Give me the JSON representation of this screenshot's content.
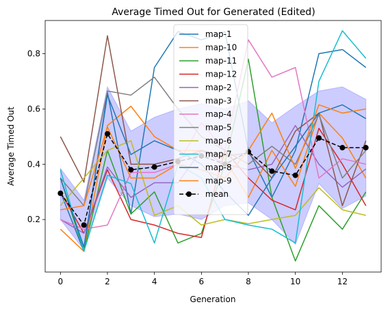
{
  "chart_data": {
    "type": "line",
    "title": "Average Timed Out for Generated (Edited)",
    "xlabel": "Generation",
    "ylabel": "Average Timed Out",
    "xlim": [
      -0.65,
      13.65
    ],
    "ylim": [
      0.01,
      0.92
    ],
    "xticks": [
      0,
      2,
      4,
      6,
      8,
      10,
      12
    ],
    "yticks": [
      0.2,
      0.4,
      0.6,
      0.8
    ],
    "grid": false,
    "legend_position": "top-center",
    "x": [
      0,
      1,
      2,
      3,
      4,
      5,
      6,
      7,
      8,
      9,
      10,
      11,
      12,
      13
    ],
    "band": {
      "color": "#0000ff",
      "upper": [
        0.385,
        0.27,
        0.68,
        0.52,
        0.57,
        0.6,
        0.62,
        0.6,
        0.63,
        0.55,
        0.61,
        0.665,
        0.68,
        0.635
      ],
      "lower": [
        0.2,
        0.09,
        0.35,
        0.25,
        0.21,
        0.22,
        0.2,
        0.25,
        0.26,
        0.2,
        0.11,
        0.33,
        0.24,
        0.285
      ]
    },
    "series": [
      {
        "name": "map-1",
        "color": "#1f77b4",
        "values": [
          0.3,
          0.085,
          0.66,
          0.22,
          0.75,
          0.88,
          0.85,
          0.88,
          0.45,
          0.28,
          0.45,
          0.8,
          0.815,
          0.75
        ]
      },
      {
        "name": "map-10",
        "color": "#ff7f0e",
        "values": [
          0.165,
          0.085,
          0.54,
          0.61,
          0.5,
          0.45,
          0.45,
          0.42,
          0.28,
          0.45,
          0.32,
          0.585,
          0.495,
          0.35
        ]
      },
      {
        "name": "map-11",
        "color": "#2ca02c",
        "values": [
          0.35,
          0.085,
          0.45,
          0.22,
          0.3,
          0.115,
          0.15,
          0.4,
          0.78,
          0.28,
          0.05,
          0.25,
          0.165,
          0.3
        ]
      },
      {
        "name": "map-12",
        "color": "#d62728",
        "values": [
          0.3,
          0.15,
          0.38,
          0.2,
          0.18,
          0.15,
          0.135,
          0.45,
          0.35,
          0.27,
          0.235,
          0.53,
          0.4,
          0.25
        ]
      },
      {
        "name": "map-2",
        "color": "#9467bd",
        "values": [
          0.2,
          0.15,
          0.39,
          0.28,
          0.333,
          0.333,
          0.45,
          0.4,
          0.38,
          0.4,
          0.54,
          0.4,
          0.317,
          0.383
        ]
      },
      {
        "name": "map-3",
        "color": "#8c564b",
        "values": [
          0.5,
          0.335,
          0.865,
          0.4,
          0.4,
          0.42,
          0.45,
          0.43,
          0.44,
          0.35,
          0.52,
          0.585,
          0.25,
          0.485
        ]
      },
      {
        "name": "map-4",
        "color": "#e377c2",
        "values": [
          0.2,
          0.165,
          0.18,
          0.37,
          0.37,
          0.4,
          0.55,
          0.45,
          0.85,
          0.715,
          0.75,
          0.35,
          0.42,
          0.4
        ]
      },
      {
        "name": "map-5",
        "color": "#7f7f7f",
        "values": [
          0.35,
          0.25,
          0.665,
          0.65,
          0.715,
          0.6,
          0.5,
          0.45,
          0.4,
          0.465,
          0.4,
          0.58,
          0.35,
          0.45
        ]
      },
      {
        "name": "map-6",
        "color": "#bcbd22",
        "values": [
          0.25,
          0.35,
          0.45,
          0.485,
          0.215,
          0.25,
          0.18,
          0.2,
          0.185,
          0.2,
          0.215,
          0.315,
          0.235,
          0.215
        ]
      },
      {
        "name": "map-7",
        "color": "#17becf",
        "values": [
          0.38,
          0.085,
          0.36,
          0.33,
          0.115,
          0.4,
          0.35,
          0.2,
          0.18,
          0.165,
          0.115,
          0.7,
          0.883,
          0.783
        ]
      },
      {
        "name": "map-8",
        "color": "#1f77b4",
        "values": [
          0.35,
          0.1,
          0.65,
          0.435,
          0.485,
          0.45,
          0.4,
          0.3,
          0.215,
          0.35,
          0.465,
          0.585,
          0.615,
          0.565
        ]
      },
      {
        "name": "map-9",
        "color": "#ff7f0e",
        "values": [
          0.235,
          0.25,
          0.535,
          0.35,
          0.35,
          0.4,
          0.38,
          0.35,
          0.45,
          0.585,
          0.385,
          0.615,
          0.585,
          0.6
        ]
      },
      {
        "name": "mean",
        "color": "#000000",
        "dashed": true,
        "marker": "circle",
        "values": [
          0.295,
          0.18,
          0.51,
          0.38,
          0.39,
          0.41,
          0.43,
          0.4,
          0.445,
          0.375,
          0.36,
          0.495,
          0.46,
          0.46
        ]
      }
    ]
  }
}
